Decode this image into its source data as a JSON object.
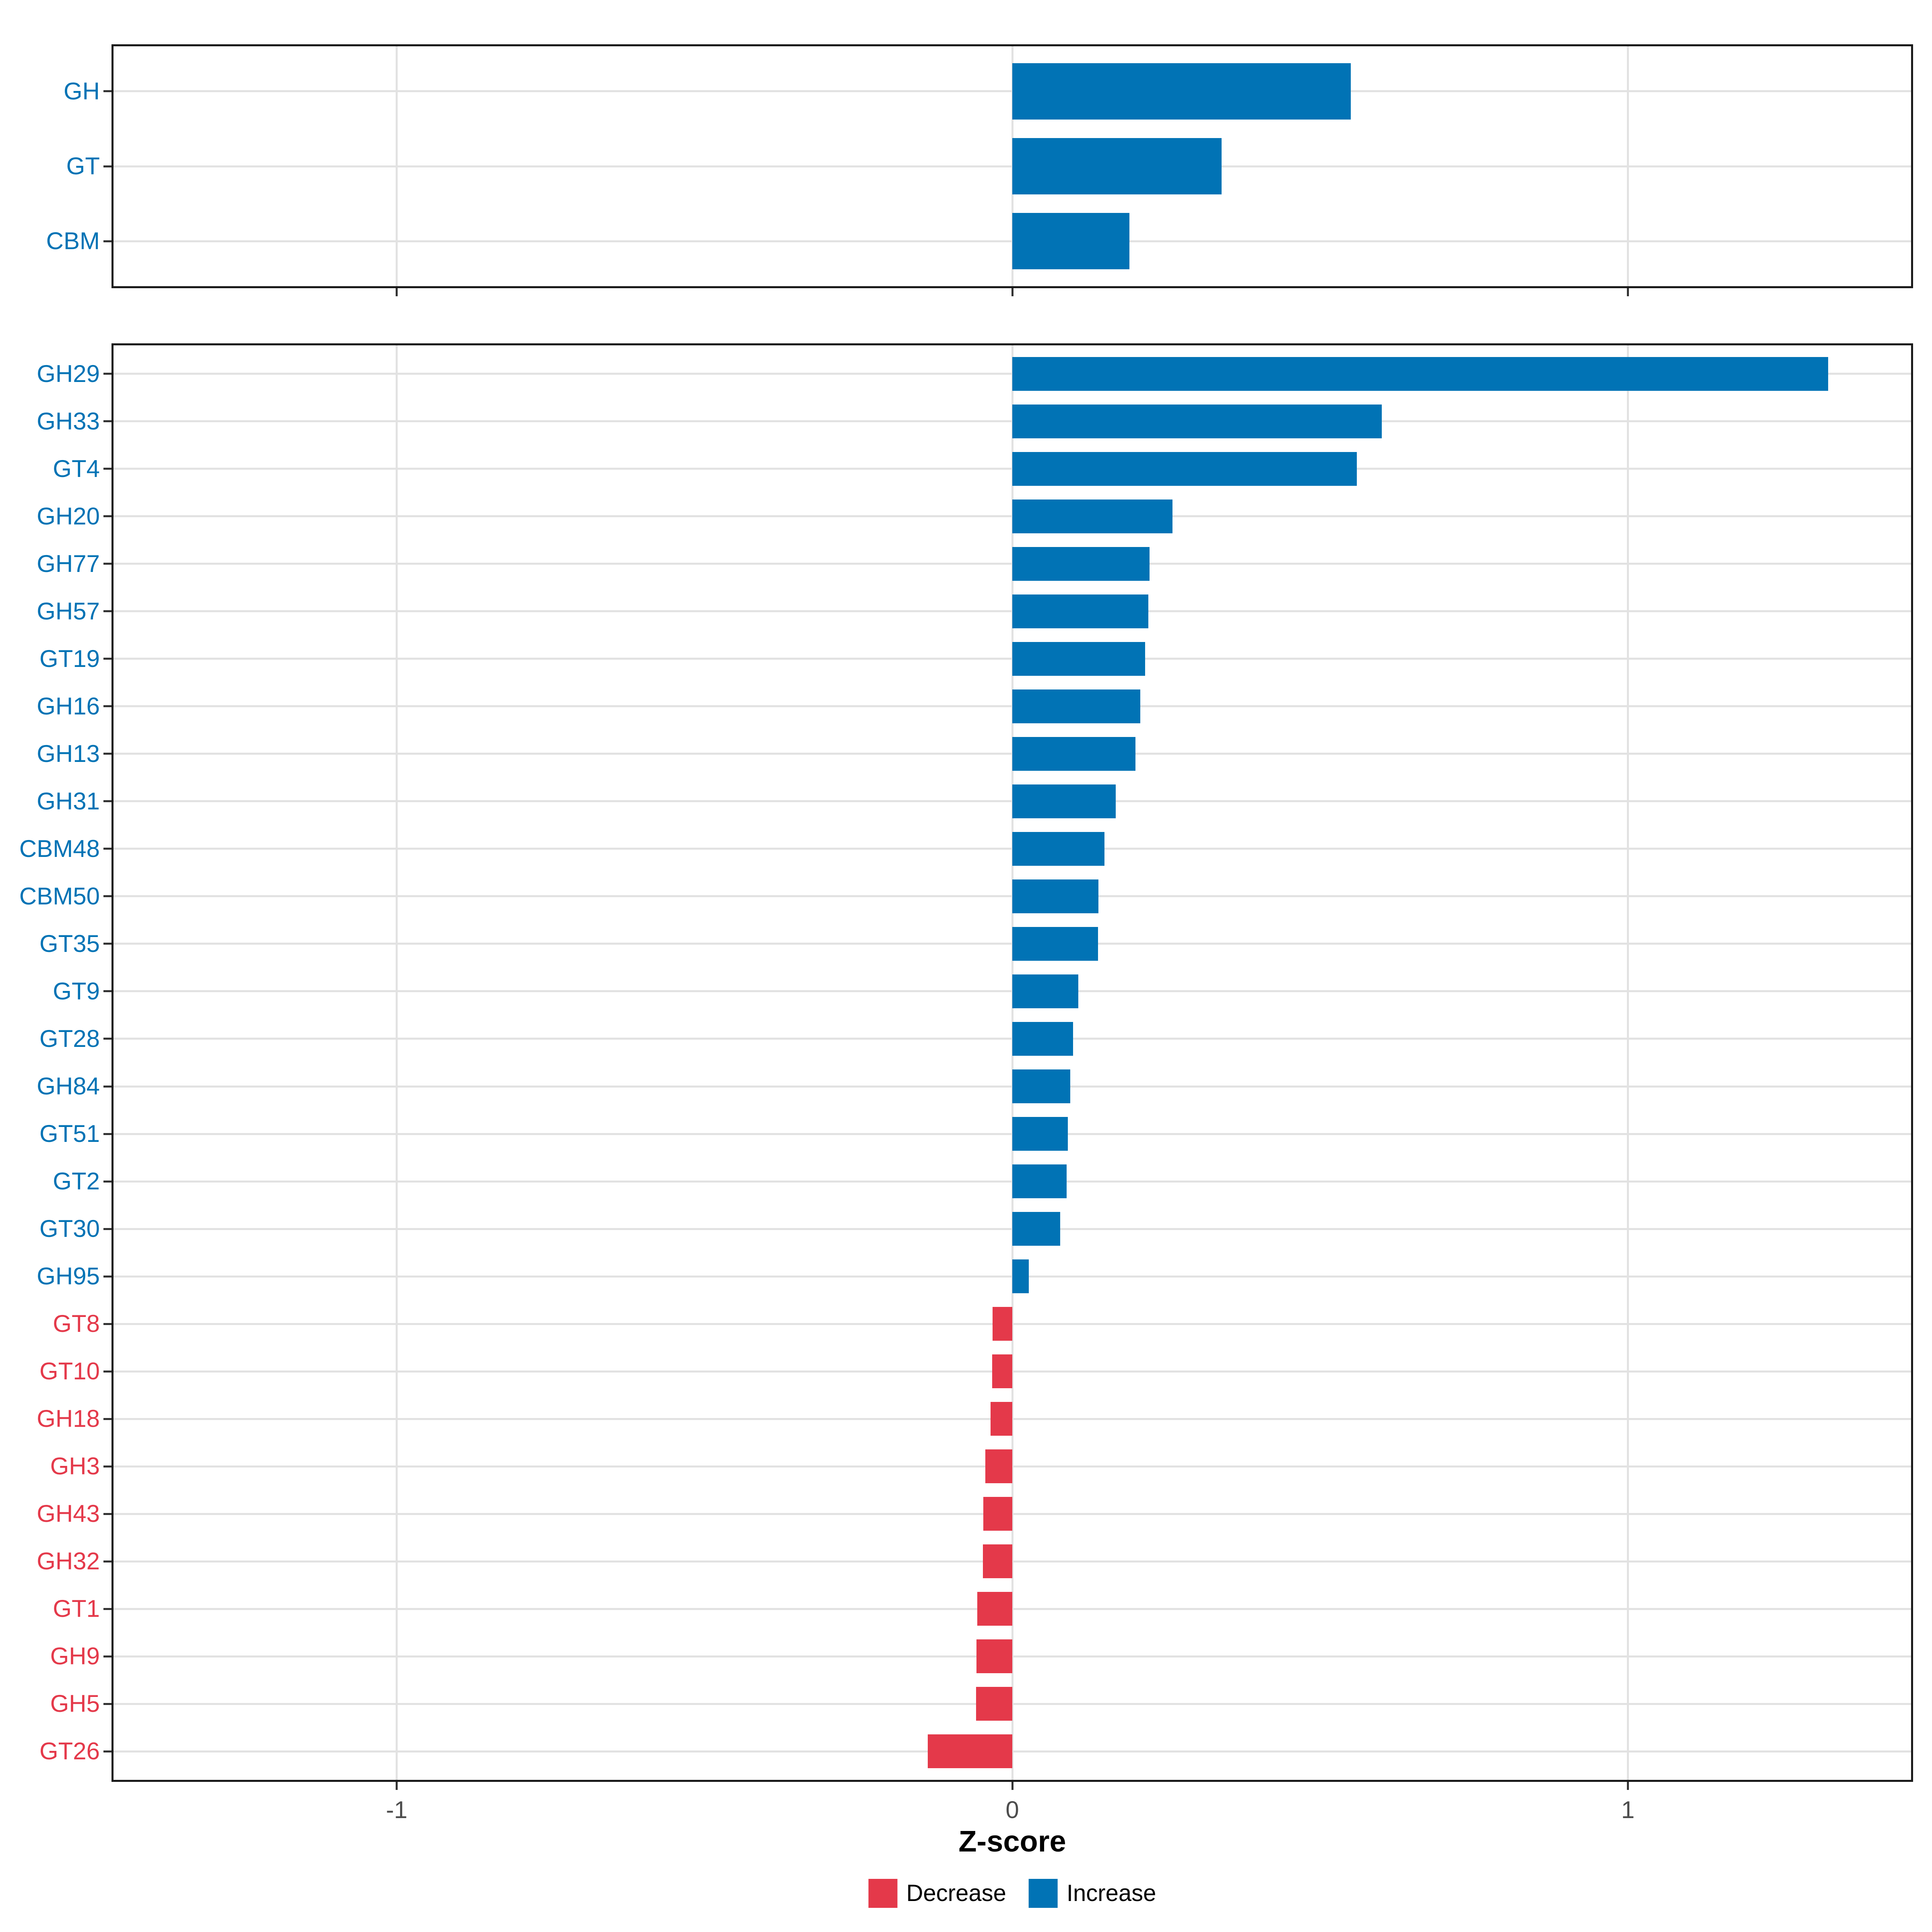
{
  "figure": {
    "background": "#FFFFFF",
    "panel_border_color": "#1A1A1A",
    "gridline_color": "#E2E2E2",
    "axis_tick_color": "#333333",
    "axis_text_color": "#4D4D4D"
  },
  "chart_data": {
    "type": "bar",
    "orientation": "horizontal",
    "title": "",
    "xlabel": "Z-score",
    "ylabel": "",
    "xlim": [
      -1.46,
      1.46
    ],
    "grid": "major",
    "legend_position": "bottom",
    "x_ticks": [
      {
        "value": -1,
        "label": "-1"
      },
      {
        "value": 0,
        "label": "0"
      },
      {
        "value": 1,
        "label": "1"
      }
    ],
    "colors": {
      "increase": "#0173B5",
      "decrease": "#E4394A"
    },
    "legend": [
      {
        "key": "decrease",
        "label": "Decrease",
        "color": "#E4394A"
      },
      {
        "key": "increase",
        "label": "Increase",
        "color": "#0173B5"
      }
    ],
    "panels": [
      {
        "id": "summary",
        "rows": [
          {
            "label": "GH",
            "value": 0.55
          },
          {
            "label": "GT",
            "value": 0.34
          },
          {
            "label": "CBM",
            "value": 0.19
          }
        ]
      },
      {
        "id": "families",
        "rows": [
          {
            "label": "GH29",
            "value": 1.325
          },
          {
            "label": "GH33",
            "value": 0.6
          },
          {
            "label": "GT4",
            "value": 0.56
          },
          {
            "label": "GH20",
            "value": 0.26
          },
          {
            "label": "GH77",
            "value": 0.223
          },
          {
            "label": "GH57",
            "value": 0.221
          },
          {
            "label": "GT19",
            "value": 0.216
          },
          {
            "label": "GH16",
            "value": 0.208
          },
          {
            "label": "GH13",
            "value": 0.2
          },
          {
            "label": "GH31",
            "value": 0.168
          },
          {
            "label": "CBM48",
            "value": 0.15
          },
          {
            "label": "CBM50",
            "value": 0.14
          },
          {
            "label": "GT35",
            "value": 0.139
          },
          {
            "label": "GT9",
            "value": 0.107
          },
          {
            "label": "GT28",
            "value": 0.099
          },
          {
            "label": "GH84",
            "value": 0.094
          },
          {
            "label": "GT51",
            "value": 0.09
          },
          {
            "label": "GT2",
            "value": 0.088
          },
          {
            "label": "GT30",
            "value": 0.078
          },
          {
            "label": "GH95",
            "value": 0.027
          },
          {
            "label": "GT8",
            "value": -0.032
          },
          {
            "label": "GT10",
            "value": -0.033
          },
          {
            "label": "GH18",
            "value": -0.035
          },
          {
            "label": "GH3",
            "value": -0.044
          },
          {
            "label": "GH43",
            "value": -0.047
          },
          {
            "label": "GH32",
            "value": -0.048
          },
          {
            "label": "GT1",
            "value": -0.057
          },
          {
            "label": "GH9",
            "value": -0.058
          },
          {
            "label": "GH5",
            "value": -0.059
          },
          {
            "label": "GT26",
            "value": -0.137
          }
        ]
      }
    ]
  }
}
